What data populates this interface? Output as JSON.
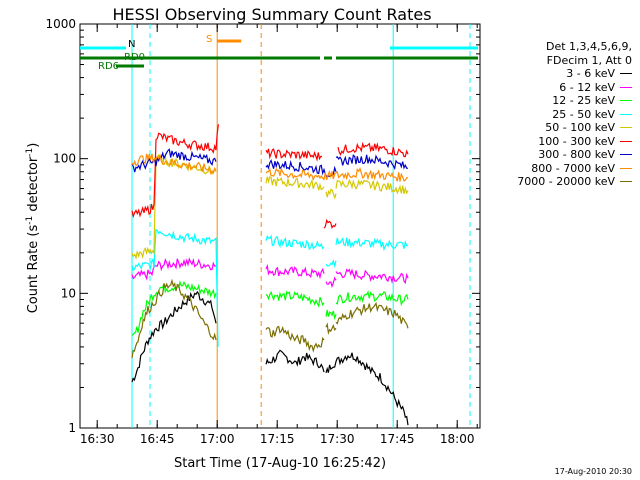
{
  "chart_data": {
    "type": "line",
    "title": "HESSI Observing Summary Count Rates",
    "xlabel": "Start Time (17-Aug-10 16:25:42)",
    "ylabel_main": "Count Rate (s",
    "ylabel_sup1": "-1",
    "ylabel_mid": " detector",
    "ylabel_sup2": "-1",
    "ylabel_end": ")",
    "y_scale": "log",
    "xlim_minutes": [
      0,
      100
    ],
    "ylim": [
      1,
      1000
    ],
    "x_tick_labels": [
      "16:30",
      "16:45",
      "17:00",
      "17:15",
      "17:30",
      "17:45",
      "18:00"
    ],
    "x_tick_minutes": [
      4.3,
      19.3,
      34.3,
      49.3,
      64.3,
      79.3,
      94.3
    ],
    "y_tick_labels": [
      "1",
      "10",
      "100",
      "1000"
    ],
    "y_tick_values": [
      1,
      10,
      100,
      1000
    ],
    "legend_header": [
      "Det 1,3,4,5,6,9,",
      "FDecim 1, Att 0"
    ],
    "series": [
      {
        "name": "3 - 6 keV",
        "color": "#000000",
        "segments": [
          {
            "x": [
              13.0,
              14.5,
              15.5,
              17.0,
              19.0,
              21.0,
              23.0,
              25.0,
              27.0,
              29.0,
              31.0,
              33.0,
              34.0
            ],
            "y": [
              2.2,
              2.8,
              3.5,
              4.5,
              5.5,
              6.0,
              7.0,
              8.0,
              9.0,
              10.0,
              9.0,
              8.0,
              6.0
            ]
          },
          {
            "x": [
              46.5,
              48.0,
              50.0,
              52.0,
              54.0,
              56.0,
              58.0,
              60.0,
              61.0
            ],
            "y": [
              3.0,
              3.2,
              3.5,
              3.3,
              3.0,
              3.4,
              3.2,
              3.0,
              2.6
            ]
          },
          {
            "x": [
              61.5,
              63.0,
              65.0,
              67.0,
              69.0,
              71.0,
              73.0,
              75.0,
              77.0,
              79.0,
              81.0,
              82.0
            ],
            "y": [
              2.5,
              3.0,
              3.2,
              3.5,
              3.4,
              3.0,
              2.6,
              2.4,
              2.0,
              1.6,
              1.3,
              1.05
            ]
          }
        ]
      },
      {
        "name": "6 - 12 keV",
        "color": "#ff00ff",
        "segments": [
          {
            "x": [
              13.0,
              15.0,
              18.0,
              19.0,
              22.0,
              26.0,
              30.0,
              34.0
            ],
            "y": [
              13.0,
              13.5,
              14.0,
              16.0,
              16.5,
              17.0,
              16.5,
              16.0
            ]
          },
          {
            "x": [
              46.5,
              50.0,
              54.0,
              58.0,
              61.0
            ],
            "y": [
              15.0,
              14.5,
              14.5,
              14.0,
              14.0
            ]
          },
          {
            "x": [
              61.5,
              63.0,
              64.0
            ],
            "y": [
              12.0,
              12.0,
              12.5
            ]
          },
          {
            "x": [
              64.0,
              68.0,
              72.0,
              76.0,
              80.0,
              82.0
            ],
            "y": [
              14.0,
              14.0,
              13.5,
              13.5,
              13.0,
              13.0
            ]
          }
        ]
      },
      {
        "name": "12 - 25 keV",
        "color": "#00ff00",
        "segments": [
          {
            "x": [
              13.0,
              14.5,
              15.5,
              17.0,
              18.5,
              20.0,
              22.0,
              25.0,
              28.0,
              31.0,
              34.0
            ],
            "y": [
              4.5,
              5.5,
              7.0,
              8.5,
              10.0,
              11.0,
              11.0,
              11.5,
              11.0,
              10.5,
              10.0
            ]
          },
          {
            "x": [
              46.5,
              50.0,
              54.0,
              58.0,
              61.0
            ],
            "y": [
              10.0,
              9.5,
              9.5,
              9.0,
              8.5
            ]
          },
          {
            "x": [
              61.5,
              63.0,
              64.0
            ],
            "y": [
              7.0,
              7.0,
              7.0
            ]
          },
          {
            "x": [
              64.0,
              68.0,
              72.0,
              76.0,
              80.0,
              82.0
            ],
            "y": [
              9.0,
              9.5,
              9.5,
              9.5,
              9.0,
              9.0
            ]
          }
        ]
      },
      {
        "name": "25 - 50 keV",
        "color": "#00ffff",
        "segments": [
          {
            "x": [
              13.0,
              16.0,
              18.5,
              19.0,
              22.0,
              26.0,
              30.0,
              34.0,
              34.5
            ],
            "y": [
              15.5,
              16.0,
              16.5,
              30.0,
              28.0,
              26.0,
              25.0,
              24.0,
              4.0
            ]
          },
          {
            "x": [
              46.5,
              50.0,
              54.0,
              58.0,
              61.0
            ],
            "y": [
              25.0,
              24.0,
              23.5,
              23.0,
              22.0
            ]
          },
          {
            "x": [
              61.5,
              63.0,
              64.0
            ],
            "y": [
              17.0,
              17.0,
              17.5
            ]
          },
          {
            "x": [
              64.0,
              68.0,
              72.0,
              76.0,
              80.0,
              82.0
            ],
            "y": [
              24.0,
              24.0,
              23.5,
              23.0,
              23.0,
              22.5
            ]
          }
        ]
      },
      {
        "name": "50 - 100 keV",
        "color": "#d4c800",
        "segments": [
          {
            "x": [
              13.0,
              16.0,
              18.5,
              19.0,
              22.0,
              26.0,
              30.0,
              34.0
            ],
            "y": [
              19.0,
              20.0,
              21.0,
              100.0,
              95.0,
              90.0,
              85.0,
              80.0
            ]
          },
          {
            "x": [
              46.5,
              50.0,
              54.0,
              58.0,
              61.0
            ],
            "y": [
              68.0,
              67.0,
              66.0,
              64.0,
              62.0
            ]
          },
          {
            "x": [
              61.5,
              64.0
            ],
            "y": [
              55.0,
              55.0
            ]
          },
          {
            "x": [
              64.0,
              68.0,
              72.0,
              76.0,
              80.0,
              82.0
            ],
            "y": [
              64.0,
              65.0,
              64.0,
              62.0,
              60.0,
              58.0
            ]
          }
        ]
      },
      {
        "name": "100 - 300 keV",
        "color": "#ff0000",
        "segments": [
          {
            "x": [
              13.0,
              16.0,
              18.5,
              19.0,
              22.0,
              26.0,
              30.0,
              34.0,
              34.6
            ],
            "y": [
              38.0,
              40.0,
              44.0,
              150.0,
              140.0,
              130.0,
              125.0,
              120.0,
              180.0
            ]
          },
          {
            "x": [
              46.5,
              50.0,
              54.0,
              58.0,
              60.5
            ],
            "y": [
              110.0,
              108.0,
              107.0,
              105.0,
              104.0
            ]
          },
          {
            "x": [
              61.0,
              64.0
            ],
            "y": [
              33.0,
              33.0
            ]
          },
          {
            "x": [
              64.5,
              68.0,
              72.0,
              76.0,
              80.0,
              82.0
            ],
            "y": [
              115.0,
              120.0,
              120.0,
              118.0,
              112.0,
              108.0
            ]
          }
        ]
      },
      {
        "name": "300 - 800 keV",
        "color": "#0000c8",
        "segments": [
          {
            "x": [
              13.0,
              16.0,
              19.0,
              22.0,
              26.0,
              30.0,
              34.0
            ],
            "y": [
              85.0,
              90.0,
              95.0,
              110.0,
              105.0,
              100.0,
              95.0
            ]
          },
          {
            "x": [
              46.5,
              50.0,
              54.0,
              58.0,
              61.0,
              62.0,
              64.0
            ],
            "y": [
              92.0,
              90.0,
              88.0,
              85.0,
              82.0,
              78.0,
              80.0
            ]
          },
          {
            "x": [
              64.0,
              68.0,
              72.0,
              76.0,
              80.0,
              82.0
            ],
            "y": [
              95.0,
              98.0,
              100.0,
              95.0,
              90.0,
              85.0
            ]
          }
        ]
      },
      {
        "name": "800 - 7000 keV",
        "color": "#ff8c00",
        "segments": [
          {
            "x": [
              13.0,
              16.0,
              19.0,
              22.0,
              26.0,
              30.0,
              34.0
            ],
            "y": [
              95.0,
              100.0,
              102.0,
              95.0,
              90.0,
              86.0,
              82.0
            ]
          },
          {
            "x": [
              46.5,
              50.0,
              54.0,
              58.0,
              62.0,
              66.0,
              70.0,
              74.0,
              78.0,
              82.0
            ],
            "y": [
              80.0,
              78.0,
              76.0,
              75.0,
              74.0,
              76.0,
              78.0,
              76.0,
              74.0,
              72.0
            ]
          }
        ]
      },
      {
        "name": "7000 - 20000 keV",
        "color": "#7a6e00",
        "segments": [
          {
            "x": [
              13.0,
              14.5,
              15.5,
              17.0,
              19.0,
              21.0,
              23.0,
              25.0,
              27.0,
              29.0,
              31.0,
              33.0,
              34.0
            ],
            "y": [
              3.5,
              4.5,
              6.0,
              7.5,
              9.0,
              11.0,
              11.5,
              10.5,
              9.0,
              7.5,
              6.0,
              5.0,
              4.5
            ]
          },
          {
            "x": [
              46.5,
              48.0,
              50.0,
              52.0,
              54.0,
              56.0,
              58.0,
              60.0,
              61.0
            ],
            "y": [
              5.5,
              5.0,
              5.5,
              5.0,
              4.5,
              4.5,
              4.0,
              4.2,
              4.5
            ]
          },
          {
            "x": [
              61.5,
              63.0,
              64.0
            ],
            "y": [
              5.5,
              5.5,
              5.5
            ]
          },
          {
            "x": [
              64.0,
              67.0,
              70.0,
              73.0,
              76.0,
              79.0,
              82.0
            ],
            "y": [
              6.0,
              7.0,
              7.5,
              8.0,
              7.5,
              7.0,
              5.5
            ]
          }
        ]
      }
    ],
    "flags": {
      "N_label": "N",
      "RD0_label": "RD0",
      "RD6_label": "RD6",
      "S_label": "S",
      "N_segments": [
        [
          0,
          11.5
        ],
        [
          77.5,
          99.5
        ]
      ],
      "RD0_segments": [
        [
          0,
          30.5
        ],
        [
          30.5,
          60.0
        ],
        [
          61.0,
          63.0
        ],
        [
          64.0,
          99.5
        ]
      ],
      "RD6_segments": [
        [
          9.0,
          16.0
        ]
      ],
      "S_segments": [
        [
          34.3,
          40.3
        ]
      ],
      "N_color": "#00ffff",
      "RD_color": "#007a00",
      "S_color": "#ff8c00",
      "N_label_x": 11.5,
      "RD0_label_x": 10.5,
      "RD6_label_x": 4.5,
      "S_label_x": 33.0
    },
    "vertical_markers": [
      {
        "x": 13.0,
        "color": "#00ffff",
        "style": "solid"
      },
      {
        "x": 17.5,
        "color": "#00ffff",
        "style": "dashed"
      },
      {
        "x": 34.3,
        "color": "#ff8c00",
        "style": "solid"
      },
      {
        "x": 45.3,
        "color": "#ff8c00",
        "style": "dashed"
      },
      {
        "x": 78.3,
        "color": "#00ffff",
        "style": "solid"
      },
      {
        "x": 97.5,
        "color": "#00ffff",
        "style": "dashed"
      }
    ]
  },
  "footer": "17-Aug-2010 20:30"
}
